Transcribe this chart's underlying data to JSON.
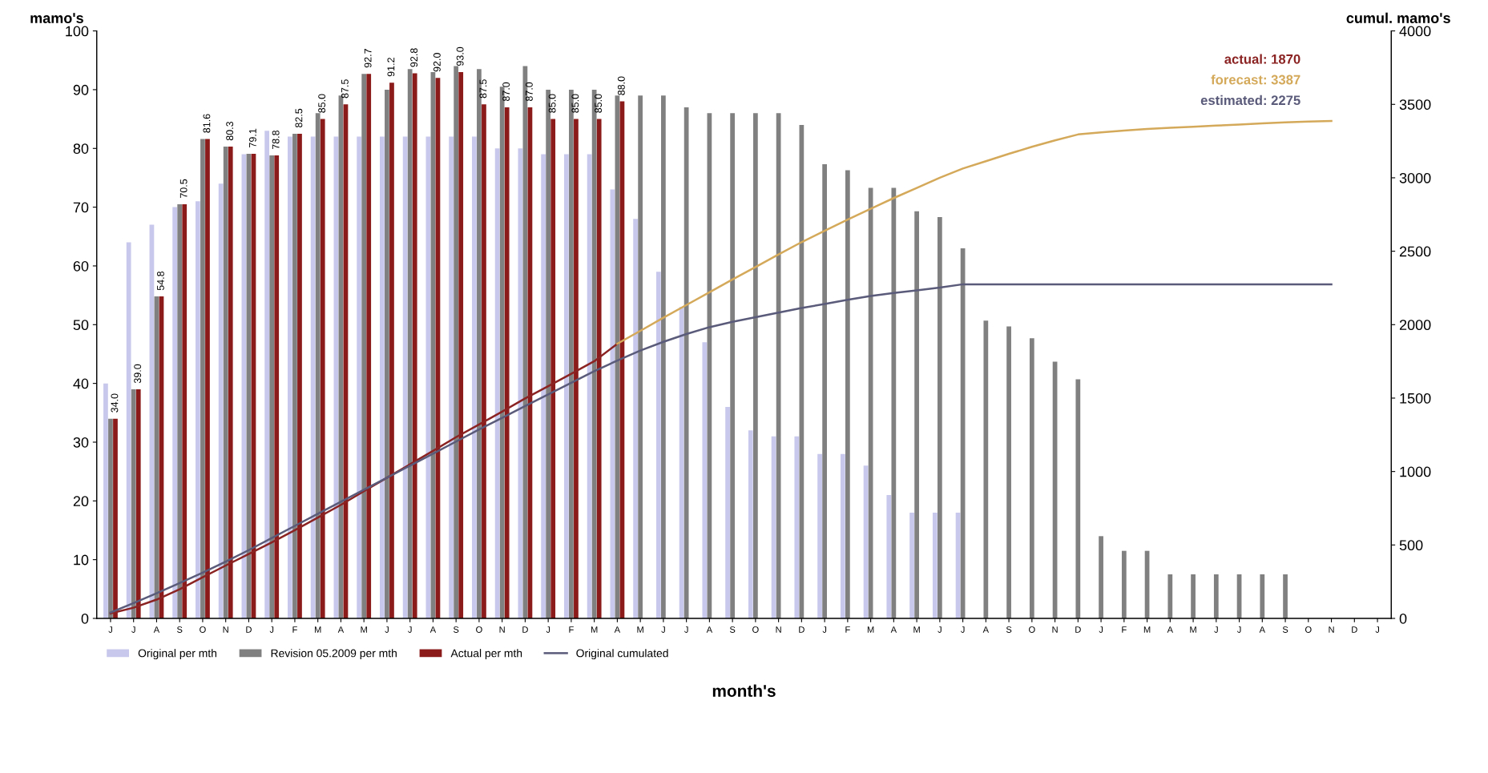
{
  "chart_data": {
    "type": "bar",
    "xlabel": "month's",
    "ylabel": "mamo's",
    "y2label": "cumul. mamo's",
    "categories": [
      "J",
      "J",
      "A",
      "S",
      "O",
      "N",
      "D",
      "J",
      "F",
      "M",
      "A",
      "M",
      "J",
      "J",
      "A",
      "S",
      "O",
      "N",
      "D",
      "J",
      "F",
      "M",
      "A",
      "M",
      "J",
      "J",
      "A",
      "S",
      "O",
      "N",
      "D",
      "J",
      "F",
      "M",
      "A",
      "M",
      "J",
      "J",
      "A",
      "S",
      "O",
      "N",
      "D",
      "J",
      "F",
      "M",
      "A",
      "M",
      "J",
      "J",
      "A",
      "S",
      "O",
      "N",
      "D",
      "J"
    ],
    "ylim": [
      0,
      100
    ],
    "yticks": [
      0,
      10,
      20,
      30,
      40,
      50,
      60,
      70,
      80,
      90,
      100
    ],
    "y2lim": [
      0,
      4000
    ],
    "y2ticks": [
      0,
      500,
      1000,
      1500,
      2000,
      2500,
      3000,
      3500,
      4000
    ],
    "grid": false,
    "legend": "bottom left",
    "series": [
      {
        "name": "Original per mth",
        "color": "#c8c8ec",
        "values": [
          40,
          64,
          67,
          70,
          71,
          74,
          79,
          83,
          82,
          82,
          82,
          82,
          82,
          82,
          82,
          82,
          82,
          80,
          80,
          79,
          79,
          79,
          73,
          68,
          59,
          53,
          47,
          36,
          32,
          31,
          31,
          28,
          28,
          26,
          21,
          18,
          18,
          18,
          null,
          null,
          null,
          null,
          null,
          null,
          null,
          null,
          null,
          null,
          null,
          null,
          null,
          null,
          null,
          null,
          null,
          null
        ]
      },
      {
        "name": "Revision 05.2009 per mth",
        "color": "#808080",
        "values": [
          34,
          39,
          54.8,
          70.5,
          81.6,
          80.3,
          79.1,
          78.8,
          82.5,
          86,
          89,
          92.7,
          90,
          93.5,
          93,
          94,
          93.5,
          90.5,
          94,
          90,
          90,
          90,
          89,
          89,
          89,
          87,
          86,
          86,
          86,
          86,
          84,
          77.3,
          76.3,
          73.3,
          73.3,
          69.3,
          68.3,
          63,
          50.7,
          49.7,
          47.7,
          43.7,
          40.7,
          14,
          11.5,
          11.5,
          7.5,
          7.5,
          7.5,
          7.5,
          7.5,
          7.5,
          null,
          null,
          null,
          null
        ]
      },
      {
        "name": "Actual per mth",
        "color": "#8b1a1a",
        "values": [
          34,
          39,
          54.8,
          70.5,
          81.6,
          80.3,
          79.1,
          78.8,
          82.5,
          85.0,
          87.5,
          92.7,
          91.2,
          92.8,
          92.0,
          93.0,
          87.5,
          87.0,
          87.0,
          85.0,
          85.0,
          85.0,
          88.0,
          null,
          null,
          null,
          null,
          null,
          null,
          null,
          null,
          null,
          null,
          null,
          null,
          null,
          null,
          null,
          null,
          null,
          null,
          null,
          null,
          null,
          null,
          null,
          null,
          null,
          null,
          null,
          null,
          null,
          null,
          null,
          null,
          null
        ],
        "value_labels": [
          "34.0",
          "39.0",
          "54.8",
          "70.5",
          "81.6",
          "80.3",
          "79.1",
          "78.8",
          "82.5",
          "85.0",
          "87.5",
          "92.7",
          "91.2",
          "92.8",
          "92.0",
          "93.0",
          "87.5",
          "87.0",
          "87.0",
          "85.0",
          "85.0",
          "85.0",
          "88.0",
          null,
          null,
          null,
          null,
          null,
          null,
          null,
          null,
          null,
          null,
          null,
          null,
          null,
          null,
          null,
          null,
          null,
          null,
          null,
          null,
          null,
          null,
          null,
          null,
          null,
          null,
          null,
          null,
          null,
          null,
          null,
          null,
          null
        ]
      },
      {
        "color": "#8b2323",
        "type": "line",
        "axis": "y2",
        "values": [
          34,
          73,
          128,
          198,
          280,
          360,
          439,
          518,
          601,
          686,
          773,
          866,
          958,
          1049,
          1141,
          1234,
          1321,
          1408,
          1498,
          1581,
          1666,
          1751,
          1870,
          null,
          null,
          null,
          null,
          null,
          null,
          null,
          null,
          null,
          null,
          null,
          null,
          null,
          null,
          null,
          null,
          null,
          null,
          null,
          null,
          null,
          null,
          null,
          null,
          null,
          null,
          null,
          null,
          null,
          null,
          null,
          null,
          null
        ]
      },
      {
        "color": "#d4a95a",
        "type": "line",
        "axis": "y2",
        "values": [
          null,
          null,
          null,
          null,
          null,
          null,
          null,
          null,
          null,
          null,
          null,
          null,
          null,
          null,
          null,
          null,
          null,
          null,
          null,
          null,
          null,
          null,
          1870,
          1958,
          2047,
          2134,
          2220,
          2308,
          2392,
          2478,
          2562,
          2639,
          2715,
          2789,
          2862,
          2931,
          3000,
          3063,
          3113,
          3163,
          3211,
          3255,
          3295,
          3309,
          3321,
          3332,
          3340,
          3347,
          3355,
          3362,
          3370,
          3377,
          3383,
          3387,
          null,
          null
        ]
      },
      {
        "name": "Original cumulated",
        "color": "#5a5a7a",
        "type": "line",
        "axis": "y2",
        "values": [
          40,
          104,
          171,
          241,
          312,
          386,
          465,
          548,
          630,
          712,
          794,
          876,
          958,
          1040,
          1122,
          1204,
          1286,
          1366,
          1446,
          1525,
          1604,
          1683,
          1756,
          1824,
          1883,
          1936,
          1983,
          2019,
          2051,
          2082,
          2113,
          2141,
          2169,
          2195,
          2216,
          2234,
          2252,
          2275,
          2275,
          2275,
          2275,
          2275,
          2275,
          2275,
          2275,
          2275,
          2275,
          2275,
          2275,
          2275,
          2275,
          2275,
          2275,
          2275,
          null,
          null
        ]
      }
    ],
    "annotations": [
      "actual: 1870",
      "forecast: 3387",
      "estimated: 2275"
    ]
  }
}
